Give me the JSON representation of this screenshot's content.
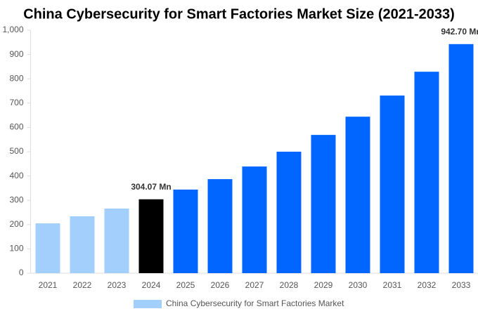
{
  "chart_data": {
    "type": "bar",
    "title": "China Cybersecurity for Smart Factories Market Size (2021-2033)",
    "categories": [
      "2021",
      "2022",
      "2023",
      "2024",
      "2025",
      "2026",
      "2027",
      "2028",
      "2029",
      "2030",
      "2031",
      "2032",
      "2033"
    ],
    "series": [
      {
        "name": "China Cybersecurity for Smart Factories Market",
        "color": "#a3cffc",
        "colors": [
          "#a3cffc",
          "#a3cffc",
          "#a3cffc",
          "#000000",
          "#0066ff",
          "#0066ff",
          "#0066ff",
          "#0066ff",
          "#0066ff",
          "#0066ff",
          "#0066ff",
          "#0066ff",
          "#0066ff"
        ],
        "values": [
          205,
          234,
          266,
          304.07,
          344,
          387,
          439,
          500,
          569,
          644,
          731,
          829,
          942.7
        ],
        "value_labels": [
          null,
          null,
          null,
          "304.07 Mn",
          null,
          null,
          null,
          null,
          null,
          null,
          null,
          null,
          "942.70 Mn"
        ]
      }
    ],
    "ylim": [
      0,
      1000
    ],
    "yticks": [
      0,
      100,
      200,
      300,
      400,
      500,
      600,
      700,
      800,
      900,
      {
        "value": 1000,
        "label": "1,000"
      }
    ],
    "grid": false
  }
}
